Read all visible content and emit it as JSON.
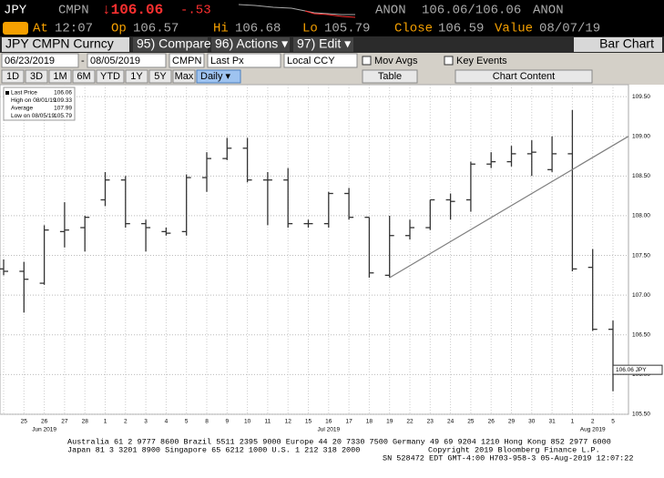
{
  "terminal": {
    "ticker": "JPY",
    "source": "CMPN",
    "last": "↓106.06",
    "change": "-.53",
    "bid_src": "ANON",
    "bid_ask": "106.06/106.06",
    "ask_src": "ANON",
    "at_label": "At",
    "at": "12:07",
    "op_label": "Op",
    "op": "106.57",
    "hi_label": "Hi",
    "hi": "106.68",
    "lo_label": "Lo",
    "lo": "105.79",
    "close_label": "Close",
    "close": "106.59",
    "value_label": "Value",
    "value": "08/07/19",
    "security": "JPY CMPN Curncy",
    "compare": "95) Compare",
    "actions": "96) Actions ▾",
    "edit": "97) Edit ▾",
    "view": "Bar Chart",
    "start_date": "06/23/2019",
    "dash": "-",
    "end_date": "08/05/2019",
    "pricing": "CMPN",
    "field": "Last Px",
    "currency": "Local CCY",
    "mov_avgs": "Mov Avgs",
    "key_events": "Key Events",
    "ranges": [
      "1D",
      "3D",
      "1M",
      "6M",
      "YTD",
      "1Y",
      "5Y",
      "Max"
    ],
    "period": "Daily ▾",
    "table": "Table",
    "chart_content": "Chart Content",
    "footer": [
      "Australia 61 2 9777 8600 Brazil 5511 2395 9000 Europe 44 20 7330 7500 Germany 49 69 9204 1210 Hong Kong 852 2977 6000",
      "Japan 81 3 3201 8900 Singapore 65 6212 1000 U.S. 1 212 318 2000",
      "Copyright 2019 Bloomberg Finance L.P.",
      "SN 528472 EDT GMT-4:00 H703-958-3 05-Aug-2019 12:07:22"
    ]
  },
  "chart_data": {
    "type": "ohlc",
    "categories": [
      null,
      "25",
      "26",
      "27",
      "28",
      "1",
      "2",
      "3",
      "4",
      "5",
      "8",
      "9",
      "10",
      "11",
      "12",
      "15",
      "16",
      "17",
      "18",
      "19",
      "22",
      "23",
      "24",
      "25",
      "26",
      "29",
      "30",
      "31",
      "1",
      "2",
      "5"
    ],
    "months": [
      "Jun 2019",
      "Jul 2019",
      "Aug 2019"
    ],
    "open": [
      107.33,
      107.3,
      107.15,
      107.8,
      107.85,
      108.2,
      108.45,
      107.9,
      107.8,
      107.8,
      108.48,
      108.72,
      108.85,
      108.45,
      108.45,
      107.9,
      107.9,
      108.28,
      107.98,
      107.25,
      107.75,
      107.85,
      108.2,
      108.2,
      108.65,
      108.68,
      108.78,
      108.58,
      108.78,
      107.35,
      106.57
    ],
    "high": [
      107.45,
      107.42,
      107.88,
      108.17,
      108.0,
      108.55,
      108.5,
      107.95,
      107.85,
      108.52,
      108.8,
      108.98,
      108.98,
      108.55,
      108.6,
      107.95,
      108.3,
      108.35,
      107.98,
      108.0,
      107.95,
      108.2,
      108.28,
      108.68,
      108.8,
      108.88,
      108.95,
      109.0,
      109.33,
      107.58,
      106.68
    ],
    "low": [
      107.25,
      106.78,
      107.13,
      107.6,
      107.55,
      108.12,
      107.85,
      107.55,
      107.75,
      107.75,
      108.3,
      108.7,
      108.42,
      107.88,
      107.85,
      107.85,
      107.85,
      107.95,
      107.22,
      107.22,
      107.7,
      107.82,
      107.95,
      108.05,
      108.6,
      108.62,
      108.5,
      108.55,
      107.3,
      106.55,
      105.79
    ],
    "close": [
      107.3,
      107.2,
      107.82,
      107.82,
      107.98,
      108.45,
      107.9,
      107.85,
      107.78,
      108.48,
      108.72,
      108.85,
      108.45,
      108.45,
      107.9,
      107.9,
      108.28,
      107.98,
      107.28,
      107.75,
      107.85,
      108.2,
      108.18,
      108.65,
      108.68,
      108.78,
      108.8,
      108.78,
      107.33,
      106.57,
      106.06
    ],
    "color": "#333333",
    "ylim": [
      105.5,
      109.65
    ],
    "yticks": [
      {
        "value": 105.5,
        "label": "105.50"
      },
      {
        "value": 106,
        "label": "106.00"
      },
      {
        "value": 106.5,
        "label": "106.50"
      },
      {
        "value": 107,
        "label": "107.00"
      },
      {
        "value": 107.5,
        "label": "107.50"
      },
      {
        "value": 108,
        "label": "108.00"
      },
      {
        "value": 108.5,
        "label": "108.50"
      },
      {
        "value": 109,
        "label": "109.00"
      },
      {
        "value": 109.5,
        "label": "109.50"
      }
    ],
    "grid": true,
    "legend": [
      {
        "label": "Last Price",
        "value": 106.06
      },
      {
        "label": "High on 08/01/19",
        "value": 109.33
      },
      {
        "label": "Average",
        "value": 107.99
      },
      {
        "label": "Low on 08/05/19",
        "value": 105.79
      }
    ],
    "last_price": 106.06,
    "last_price_label": "106.06 JPY",
    "trendline": [
      107.22,
      109.0
    ],
    "trendline_color": "#7f7f7f"
  }
}
